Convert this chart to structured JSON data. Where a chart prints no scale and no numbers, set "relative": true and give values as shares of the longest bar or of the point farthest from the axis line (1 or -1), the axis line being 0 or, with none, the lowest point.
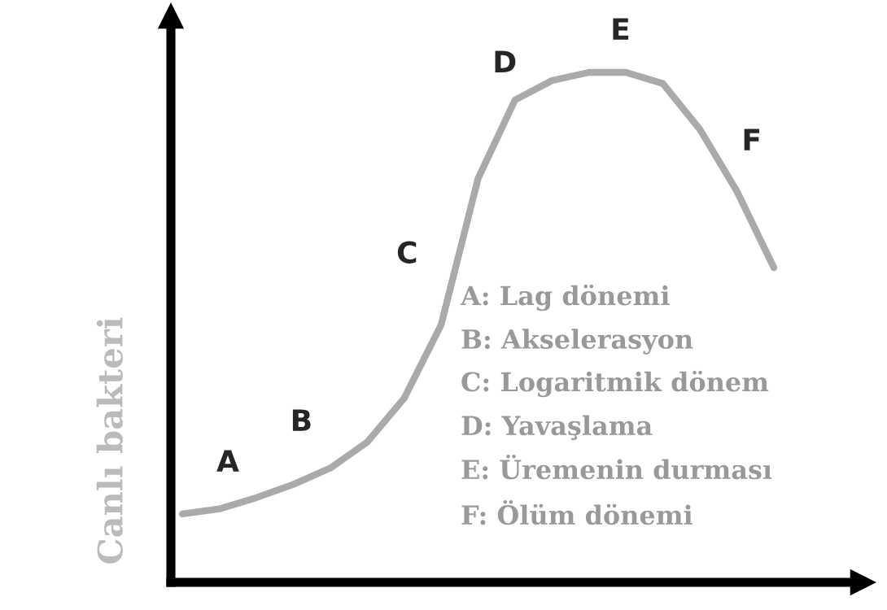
{
  "chart_data": {
    "type": "line",
    "relative": true,
    "ylabel": "Canlı bakteri",
    "color": "#aaaaaa",
    "marker": "none",
    "line_style": "solid",
    "tick_labels": false,
    "categories": [
      null,
      null,
      null,
      null,
      null,
      null,
      null,
      null,
      null,
      null,
      null,
      null,
      null,
      null,
      null,
      null,
      null
    ],
    "values": [
      0.134,
      0.144,
      0.166,
      0.192,
      0.224,
      0.275,
      0.361,
      0.505,
      0.792,
      0.946,
      0.984,
      1,
      1,
      0.978,
      0.888,
      0.767,
      0.617
    ],
    "annotations": [
      "A",
      "B",
      "C",
      "D",
      "E",
      "F",
      "A: Lag dönemi",
      "B: Akselerasyon",
      "C: Logaritmik dönem",
      "D: Yavaşlama",
      "E: Üremenin durması",
      "F: Ölüm dönemi"
    ]
  }
}
